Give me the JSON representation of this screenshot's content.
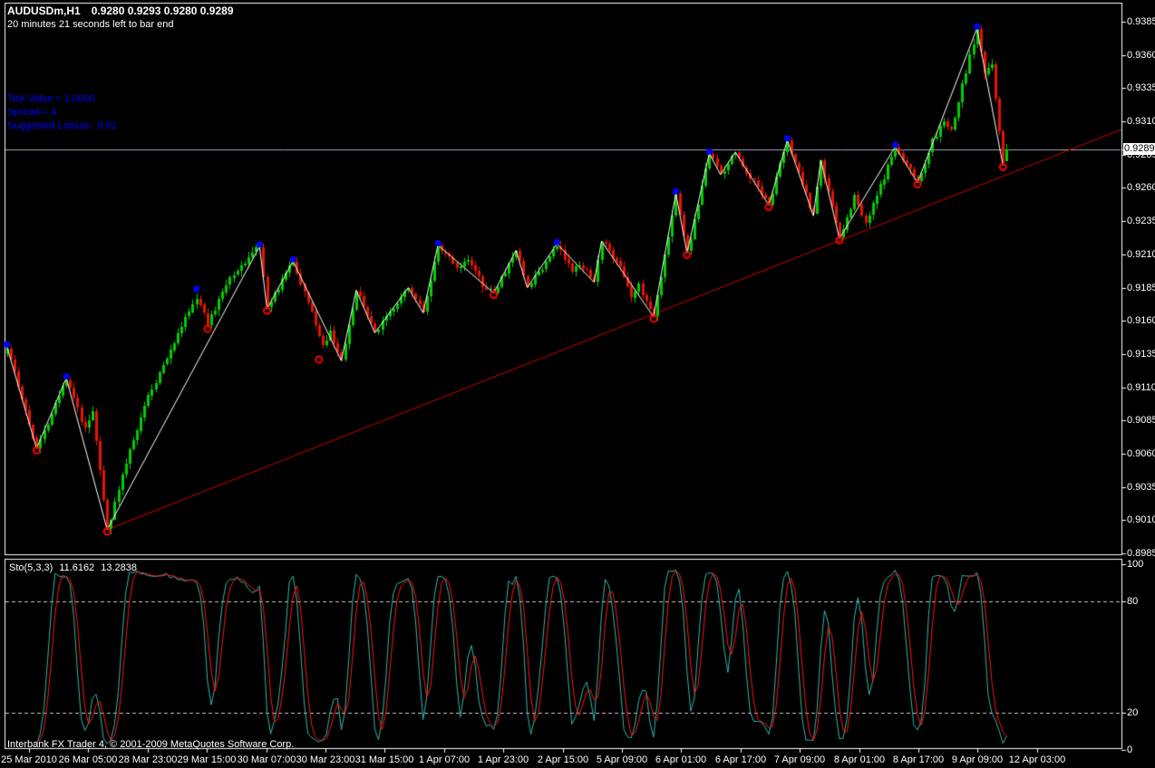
{
  "window": {
    "title_symbol": "AUDUSDm,H1",
    "title_ohlc": "0.9280 0.9293 0.9280 0.9289",
    "bar_timer": "20 minutes 21 seconds left to bar end"
  },
  "info_panel": {
    "lines": [
      "Tick Value = 1.0000",
      "Spread = 4",
      "Suggested Lotsize : 0.01"
    ]
  },
  "footer": {
    "copyright": "Interbank FX Trader 4, © 2001-2009 MetaQuotes Software Corp."
  },
  "price_axis": {
    "labels": [
      "0.9385",
      "0.9360",
      "0.9335",
      "0.9310",
      "0.9285",
      "0.9260",
      "0.9235",
      "0.9210",
      "0.9185",
      "0.9160",
      "0.9135",
      "0.9110",
      "0.9085",
      "0.9060",
      "0.9035",
      "0.9010",
      "0.8985"
    ],
    "current_price": "0.9289"
  },
  "time_axis": {
    "labels": [
      "25 Mar 2010",
      "26 Mar 05:00",
      "28 Mar 23:00",
      "29 Mar 15:00",
      "30 Mar 07:00",
      "30 Mar 23:00",
      "31 Mar 15:00",
      "1 Apr 07:00",
      "1 Apr 23:00",
      "2 Apr 15:00",
      "5 Apr 09:00",
      "6 Apr 01:00",
      "6 Apr 17:00",
      "7 Apr 09:00",
      "8 Apr 01:00",
      "8 Apr 17:00",
      "9 Apr 09:00",
      "12 Apr 03:00"
    ]
  },
  "stoch_panel": {
    "name": "Sto(5,3,3)",
    "k_value": "11.6162",
    "d_value": "13.2838",
    "axis_labels": [
      "100",
      "80",
      "20",
      "0"
    ]
  },
  "colors": {
    "background": "#000000",
    "bull": "#00CE00",
    "bear": "#E81400",
    "zigzag": "#FFFFFF",
    "trendline": "#D00000",
    "price_line": "#A0A8C0",
    "stoch_k": "#30B6AC",
    "stoch_d": "#FF1414",
    "level_dash": "#C8C8C8",
    "frame": "#FFFFFF",
    "axis_text": "#FFFFFF",
    "info_text": "#0000FF",
    "marker_high": "#0000FF",
    "marker_low": "#FF0000",
    "price_tag_bg": "#FFFFFF",
    "price_tag_text": "#000000"
  },
  "chart_data": {
    "type": "candlestick",
    "symbol": "AUDUSDm",
    "timeframe": "H1",
    "title": "AUDUSDm,H1 0.9280 0.9293 0.9280 0.9289",
    "current_ohlc": {
      "open": 0.928,
      "high": 0.9293,
      "low": 0.928,
      "close": 0.9289
    },
    "current_price": 0.9289,
    "bars_count": 270,
    "price_axis_ticks": [
      0.9385,
      0.936,
      0.9335,
      0.931,
      0.9285,
      0.926,
      0.9235,
      0.921,
      0.9185,
      0.916,
      0.9135,
      0.911,
      0.9085,
      0.906,
      0.9035,
      0.901,
      0.8985
    ],
    "ylim": [
      0.8985,
      0.9385
    ],
    "zigzag_pivots": [
      {
        "i": 0,
        "price": 0.9141,
        "type": "H",
        "dot": "blue"
      },
      {
        "i": 8,
        "price": 0.9064,
        "type": "L",
        "dot": "red"
      },
      {
        "i": 16,
        "price": 0.9117,
        "type": "H",
        "dot": "blue"
      },
      {
        "i": 27,
        "price": 0.9003,
        "type": "L",
        "dot": "red"
      },
      {
        "i": 68,
        "price": 0.9216,
        "type": "H",
        "dot": "blue"
      },
      {
        "i": 70,
        "price": 0.9169,
        "type": "L",
        "dot": "red"
      },
      {
        "i": 77,
        "price": 0.9205,
        "type": "H",
        "dot": "blue"
      },
      {
        "i": 90,
        "price": 0.913,
        "type": "L",
        "dot": null
      },
      {
        "i": 94,
        "price": 0.9183,
        "type": "H",
        "dot": null
      },
      {
        "i": 99,
        "price": 0.9151,
        "type": "L",
        "dot": null
      },
      {
        "i": 108,
        "price": 0.9185,
        "type": "H",
        "dot": null
      },
      {
        "i": 112,
        "price": 0.9166,
        "type": "L",
        "dot": null
      },
      {
        "i": 116,
        "price": 0.9217,
        "type": "H",
        "dot": "blue"
      },
      {
        "i": 131,
        "price": 0.9181,
        "type": "L",
        "dot": "red"
      },
      {
        "i": 137,
        "price": 0.9213,
        "type": "H",
        "dot": null
      },
      {
        "i": 140,
        "price": 0.9185,
        "type": "L",
        "dot": null
      },
      {
        "i": 148,
        "price": 0.9218,
        "type": "H",
        "dot": "blue"
      },
      {
        "i": 158,
        "price": 0.9189,
        "type": "L",
        "dot": null
      },
      {
        "i": 160,
        "price": 0.922,
        "type": "H",
        "dot": null
      },
      {
        "i": 174,
        "price": 0.9163,
        "type": "L",
        "dot": "red"
      },
      {
        "i": 180,
        "price": 0.9256,
        "type": "H",
        "dot": "blue"
      },
      {
        "i": 183,
        "price": 0.9211,
        "type": "L",
        "dot": "red"
      },
      {
        "i": 189,
        "price": 0.9286,
        "type": "H",
        "dot": "blue"
      },
      {
        "i": 192,
        "price": 0.927,
        "type": "L",
        "dot": null
      },
      {
        "i": 196,
        "price": 0.9287,
        "type": "H",
        "dot": null
      },
      {
        "i": 205,
        "price": 0.9247,
        "type": "L",
        "dot": "red"
      },
      {
        "i": 210,
        "price": 0.9296,
        "type": "H",
        "dot": "blue"
      },
      {
        "i": 217,
        "price": 0.9239,
        "type": "L",
        "dot": null
      },
      {
        "i": 219,
        "price": 0.9281,
        "type": "H",
        "dot": null
      },
      {
        "i": 224,
        "price": 0.9222,
        "type": "L",
        "dot": "red"
      },
      {
        "i": 239,
        "price": 0.9291,
        "type": "H",
        "dot": "blue"
      },
      {
        "i": 245,
        "price": 0.9264,
        "type": "L",
        "dot": "red"
      },
      {
        "i": 261,
        "price": 0.938,
        "type": "H",
        "dot": "blue"
      },
      {
        "i": 268,
        "price": 0.9277,
        "type": "L",
        "dot": "red"
      }
    ],
    "soft_path_points": [
      {
        "i": 21,
        "price": 0.9078
      },
      {
        "i": 23,
        "price": 0.9092
      },
      {
        "i": 33,
        "price": 0.9062
      },
      {
        "i": 38,
        "price": 0.9102
      },
      {
        "i": 44,
        "price": 0.914
      },
      {
        "i": 51,
        "price": 0.9178
      },
      {
        "i": 54,
        "price": 0.9157
      },
      {
        "i": 60,
        "price": 0.9192
      },
      {
        "i": 82,
        "price": 0.9165
      },
      {
        "i": 85,
        "price": 0.9142
      },
      {
        "i": 87,
        "price": 0.9152
      },
      {
        "i": 121,
        "price": 0.9199
      },
      {
        "i": 124,
        "price": 0.9206
      },
      {
        "i": 128,
        "price": 0.9187
      },
      {
        "i": 144,
        "price": 0.92
      },
      {
        "i": 152,
        "price": 0.9196
      },
      {
        "i": 154,
        "price": 0.9204
      },
      {
        "i": 165,
        "price": 0.92
      },
      {
        "i": 168,
        "price": 0.9178
      },
      {
        "i": 170,
        "price": 0.9186
      },
      {
        "i": 200,
        "price": 0.9268
      },
      {
        "i": 214,
        "price": 0.9262
      },
      {
        "i": 228,
        "price": 0.9254
      },
      {
        "i": 231,
        "price": 0.9232
      },
      {
        "i": 249,
        "price": 0.9295
      },
      {
        "i": 252,
        "price": 0.931
      },
      {
        "i": 254,
        "price": 0.9302
      },
      {
        "i": 258,
        "price": 0.9348
      },
      {
        "i": 263,
        "price": 0.9345
      },
      {
        "i": 265,
        "price": 0.9352
      },
      {
        "i": 267,
        "price": 0.9302
      }
    ],
    "floating_markers": [
      {
        "i": 51,
        "price": 0.9182,
        "kind": "high"
      },
      {
        "i": 54,
        "price": 0.9156,
        "kind": "low"
      },
      {
        "i": 84,
        "price": 0.9133,
        "kind": "low"
      }
    ],
    "trendline": {
      "from_bar": 27,
      "from_price": 0.9003,
      "to_price": 0.9304
    },
    "stochastic": {
      "params": [
        5,
        3,
        3
      ],
      "k": 11.6162,
      "d": 13.2838,
      "upper": 80,
      "lower": 20,
      "range": [
        0,
        100
      ]
    },
    "seed": 7
  }
}
